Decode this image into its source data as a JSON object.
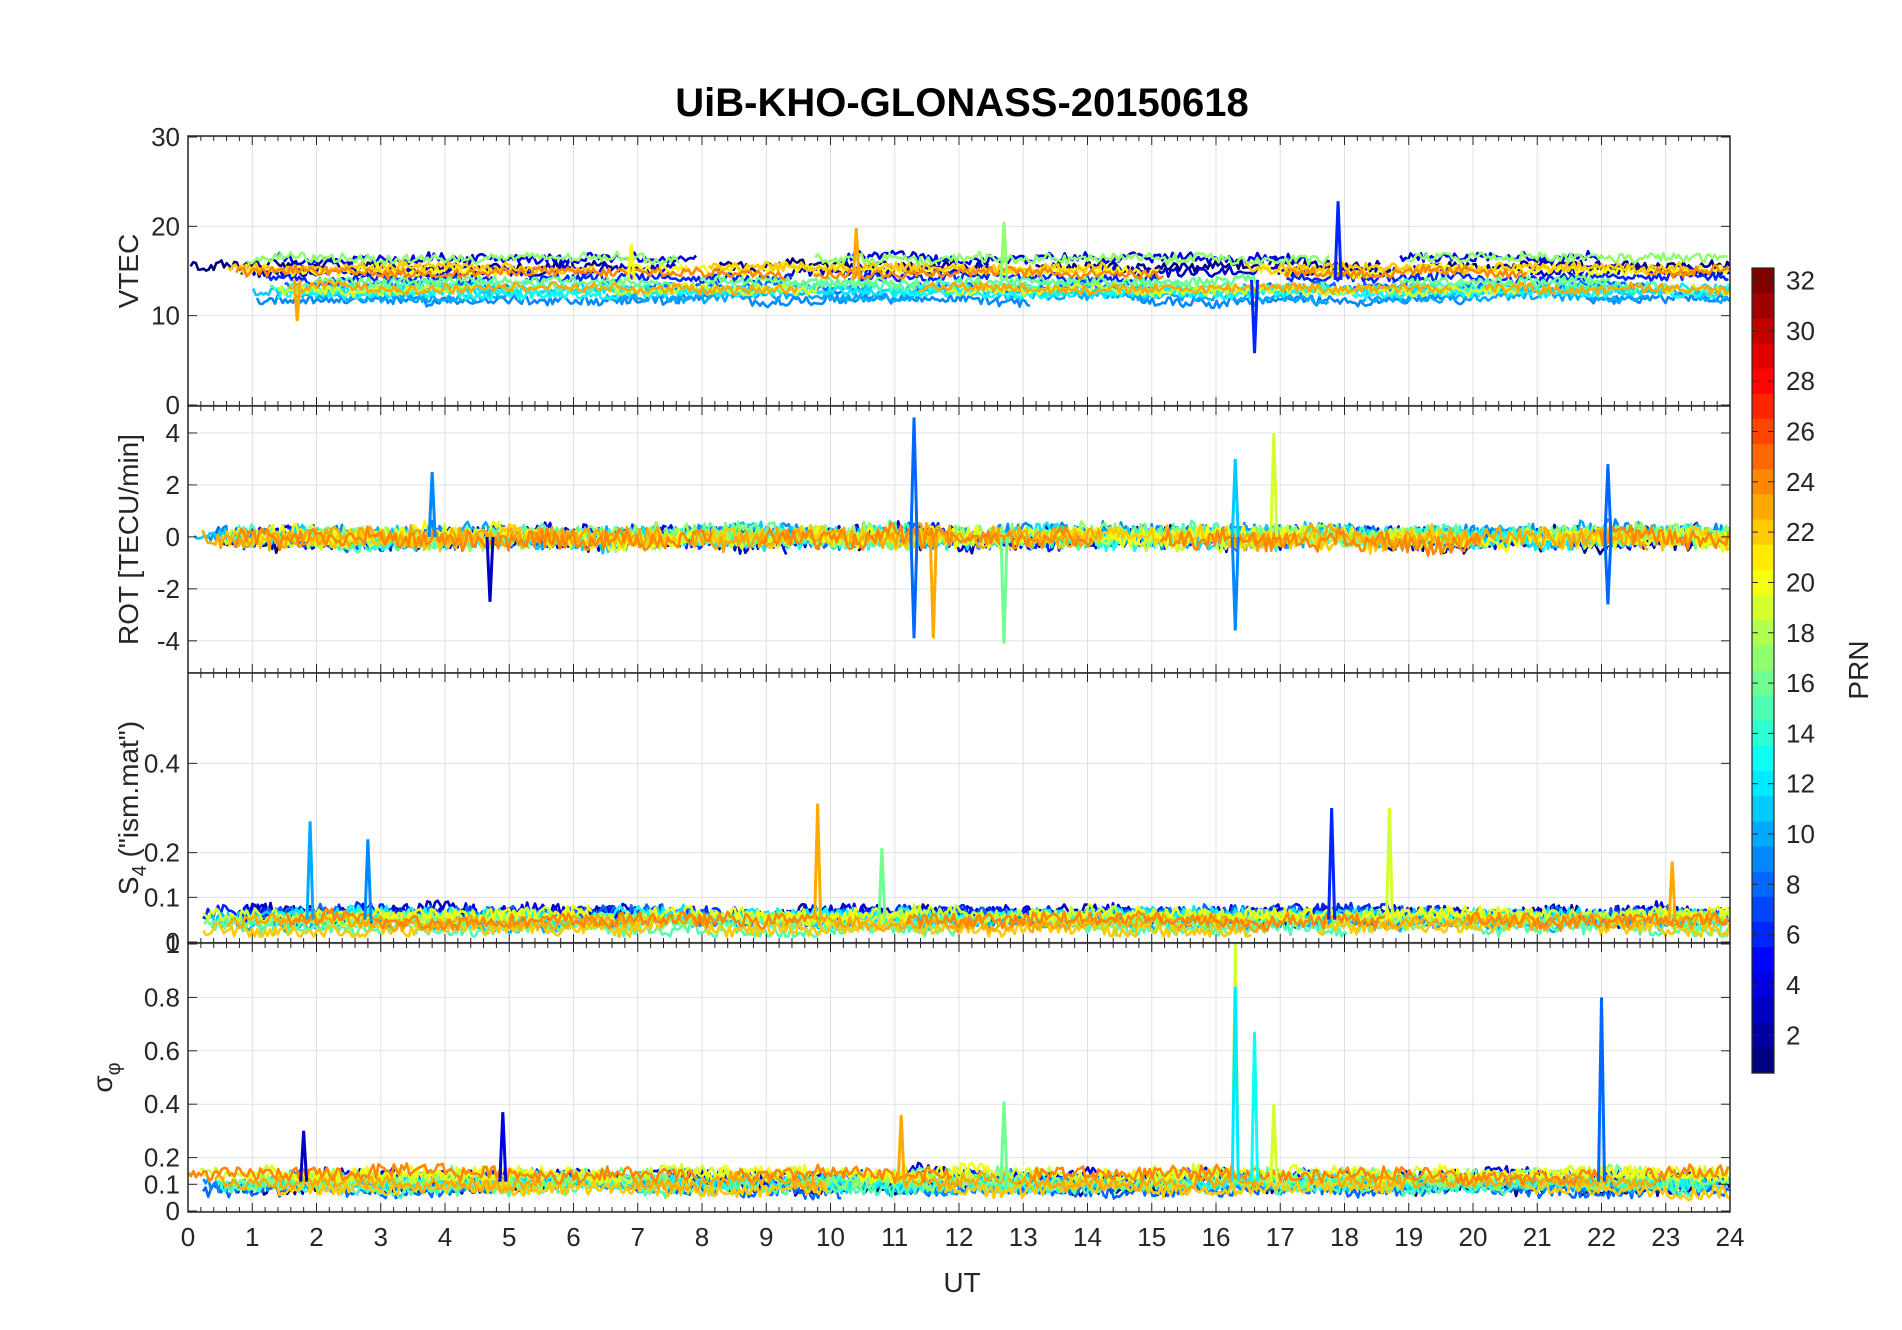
{
  "chart_data": {
    "type": "line",
    "title": "UiB-KHO-GLONASS-20150618",
    "xlabel": "UT",
    "xlim": [
      0,
      24
    ],
    "xticks": [
      "0",
      "1",
      "2",
      "3",
      "4",
      "5",
      "6",
      "7",
      "8",
      "9",
      "10",
      "11",
      "12",
      "13",
      "14",
      "15",
      "16",
      "17",
      "18",
      "19",
      "20",
      "21",
      "22",
      "23",
      "24"
    ],
    "grid": true,
    "panels": [
      {
        "id": "vtec",
        "ylabel": "VTEC",
        "ylim": [
          0,
          30
        ],
        "yticks": [
          "0",
          "10",
          "20",
          "30"
        ],
        "baseline": 14,
        "spread": 2.5,
        "noise": 1.0,
        "spikes": [
          {
            "t": 17.9,
            "v": 22.8,
            "prn": 6
          },
          {
            "t": 16.6,
            "v": 5.8,
            "prn": 6
          },
          {
            "t": 12.7,
            "v": 20.5,
            "prn": 17
          },
          {
            "t": 10.4,
            "v": 19.8,
            "prn": 23
          },
          {
            "t": 6.9,
            "v": 18.0,
            "prn": 20
          },
          {
            "t": 1.7,
            "v": 9.4,
            "prn": 23
          }
        ]
      },
      {
        "id": "rot",
        "ylabel": "ROT [TECU/min]",
        "ylim": [
          -5.2,
          5
        ],
        "yticks": [
          "-4",
          "-2",
          "0",
          "2",
          "4"
        ],
        "baseline": 0,
        "spread": 0.1,
        "noise": 0.7,
        "spikes": [
          {
            "t": 11.3,
            "v": 4.6,
            "prn": 8
          },
          {
            "t": 11.3,
            "v": -3.9,
            "prn": 8
          },
          {
            "t": 11.6,
            "v": -3.9,
            "prn": 23
          },
          {
            "t": 12.7,
            "v": -4.1,
            "prn": 16
          },
          {
            "t": 16.9,
            "v": 4.0,
            "prn": 19
          },
          {
            "t": 16.3,
            "v": 3.0,
            "prn": 11
          },
          {
            "t": 16.3,
            "v": -3.6,
            "prn": 9
          },
          {
            "t": 22.1,
            "v": 2.8,
            "prn": 8
          },
          {
            "t": 22.1,
            "v": -2.6,
            "prn": 8
          },
          {
            "t": 4.7,
            "v": -2.5,
            "prn": 3
          },
          {
            "t": 3.8,
            "v": 2.5,
            "prn": 9
          }
        ]
      },
      {
        "id": "s4",
        "ylabel": "S4 (\"ism.mat\")",
        "ylabel_main": "S",
        "ylabel_sub": "4",
        "ylabel_rest": " (\"ism.mat\")",
        "ylim": [
          0,
          0.6
        ],
        "yticks": [
          "0",
          "0.1",
          "0.2",
          "0.4"
        ],
        "baseline": 0.05,
        "spread": 0.02,
        "noise": 0.03,
        "spikes": [
          {
            "t": 1.9,
            "v": 0.27,
            "prn": 10
          },
          {
            "t": 2.8,
            "v": 0.23,
            "prn": 9
          },
          {
            "t": 9.8,
            "v": 0.31,
            "prn": 23
          },
          {
            "t": 10.8,
            "v": 0.21,
            "prn": 16
          },
          {
            "t": 17.8,
            "v": 0.3,
            "prn": 6
          },
          {
            "t": 18.7,
            "v": 0.3,
            "prn": 19
          },
          {
            "t": 23.1,
            "v": 0.18,
            "prn": 23
          }
        ]
      },
      {
        "id": "sigma",
        "ylabel": "σφ",
        "ylabel_main": "σ",
        "ylabel_sub": "φ",
        "ylim": [
          0,
          1
        ],
        "yticks": [
          "0",
          "0.1",
          "0.2",
          "0.4",
          "0.6",
          "0.8",
          "1"
        ],
        "baseline": 0.11,
        "spread": 0.03,
        "noise": 0.05,
        "spikes": [
          {
            "t": 16.3,
            "v": 1.0,
            "prn": 19
          },
          {
            "t": 16.3,
            "v": 0.84,
            "prn": 12
          },
          {
            "t": 16.6,
            "v": 0.67,
            "prn": 13
          },
          {
            "t": 22.0,
            "v": 0.8,
            "prn": 8
          },
          {
            "t": 12.7,
            "v": 0.41,
            "prn": 16
          },
          {
            "t": 16.9,
            "v": 0.4,
            "prn": 19
          },
          {
            "t": 4.9,
            "v": 0.37,
            "prn": 4
          },
          {
            "t": 11.1,
            "v": 0.36,
            "prn": 23
          },
          {
            "t": 1.8,
            "v": 0.3,
            "prn": 3
          }
        ]
      }
    ],
    "colorbar": {
      "label": "PRN",
      "range": [
        1,
        32
      ],
      "ticks": [
        "2",
        "4",
        "6",
        "8",
        "10",
        "12",
        "14",
        "16",
        "18",
        "20",
        "22",
        "24",
        "26",
        "28",
        "30",
        "32"
      ],
      "colormap": "jet"
    }
  }
}
